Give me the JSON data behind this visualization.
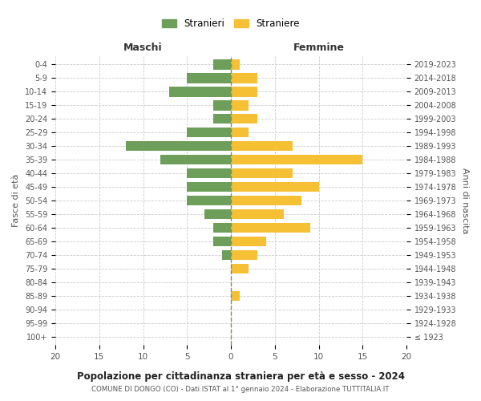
{
  "age_groups": [
    "100+",
    "95-99",
    "90-94",
    "85-89",
    "80-84",
    "75-79",
    "70-74",
    "65-69",
    "60-64",
    "55-59",
    "50-54",
    "45-49",
    "40-44",
    "35-39",
    "30-34",
    "25-29",
    "20-24",
    "15-19",
    "10-14",
    "5-9",
    "0-4"
  ],
  "birth_years": [
    "≤ 1923",
    "1924-1928",
    "1929-1933",
    "1934-1938",
    "1939-1943",
    "1944-1948",
    "1949-1953",
    "1954-1958",
    "1959-1963",
    "1964-1968",
    "1969-1973",
    "1974-1978",
    "1979-1983",
    "1984-1988",
    "1989-1993",
    "1994-1998",
    "1999-2003",
    "2004-2008",
    "2009-2013",
    "2014-2018",
    "2019-2023"
  ],
  "maschi": [
    0,
    0,
    0,
    0,
    0,
    0,
    1,
    2,
    2,
    3,
    5,
    5,
    5,
    8,
    12,
    5,
    2,
    2,
    7,
    5,
    2
  ],
  "femmine": [
    0,
    0,
    0,
    1,
    0,
    2,
    3,
    4,
    9,
    6,
    8,
    10,
    7,
    15,
    7,
    2,
    3,
    2,
    3,
    3,
    1
  ],
  "male_color": "#6d9e5a",
  "female_color": "#f5c034",
  "background_color": "#ffffff",
  "grid_color": "#cccccc",
  "center_line_color": "#888866",
  "title": "Popolazione per cittadinanza straniera per età e sesso - 2024",
  "subtitle": "COMUNE DI DONGO (CO) - Dati ISTAT al 1° gennaio 2024 - Elaborazione TUTTITALIA.IT",
  "xlabel_left": "Maschi",
  "xlabel_right": "Femmine",
  "ylabel_left": "Fasce di età",
  "ylabel_right": "Anni di nascita",
  "xlim": 20,
  "legend_maschi": "Stranieri",
  "legend_femmine": "Straniere"
}
